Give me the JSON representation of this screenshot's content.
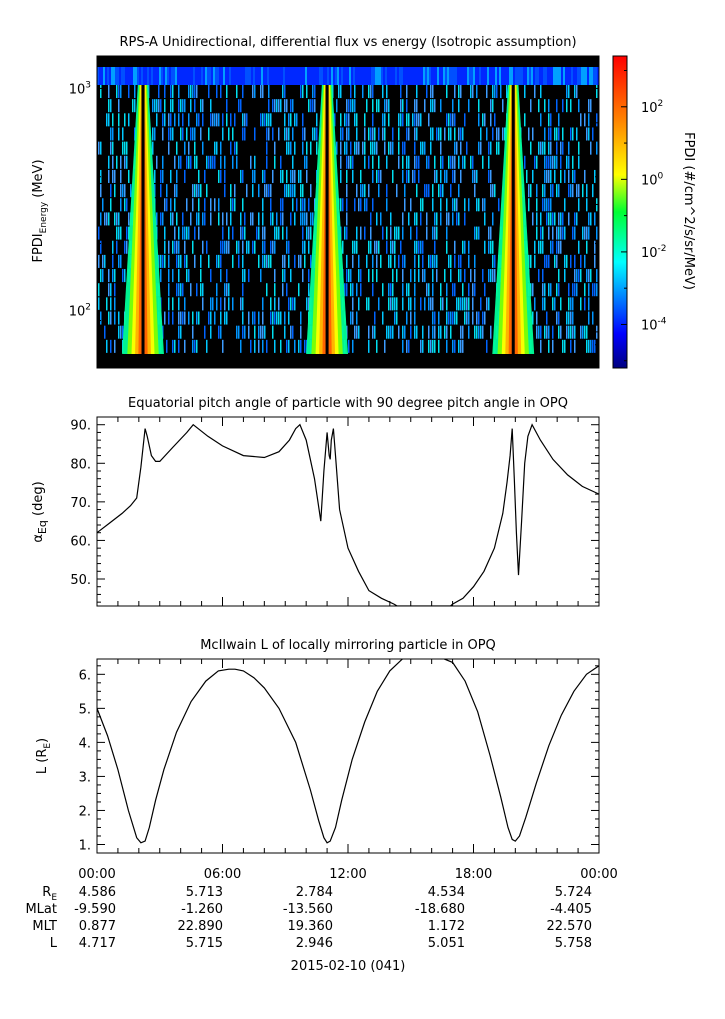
{
  "chart_data": [
    {
      "type": "heatmap",
      "title": "RPS-A Unidirectional, differential flux vs energy (Isotropic assumption)",
      "ylabel_main": "FPDI",
      "ylabel_sub": "Energy",
      "ylabel_unit": " (MeV)",
      "ylim": [
        55,
        1400
      ],
      "yscale": "log",
      "y_ticks": [
        {
          "value": 100,
          "base": "10",
          "exp": "2"
        },
        {
          "value": 1000,
          "base": "10",
          "exp": "3"
        }
      ],
      "time_range_hours": [
        0,
        24
      ],
      "bright_bands_hours": [
        {
          "center": 2.2,
          "channel_bottom_hours": [
            1.2,
            3.2
          ],
          "channel_top_hours": [
            2.0,
            2.5
          ]
        },
        {
          "center": 11.0,
          "channel_bottom_hours": [
            10.0,
            12.0
          ],
          "channel_top_hours": [
            10.8,
            11.3
          ]
        },
        {
          "center": 19.9,
          "channel_bottom_hours": [
            19.0,
            21.0
          ],
          "channel_top_hours": [
            19.7,
            20.2
          ]
        }
      ],
      "colorbar": {
        "label": "FPDI (#/cm^2/s/sr/MeV)",
        "min_exp": -5.2,
        "max_exp": 3.4,
        "ticks": [
          {
            "exp": "2",
            "base": "10"
          },
          {
            "exp": "0",
            "base": "10"
          },
          {
            "exp": "-2",
            "base": "10"
          },
          {
            "exp": "-4",
            "base": "10"
          }
        ]
      }
    },
    {
      "type": "line",
      "title": "Equatorial pitch angle of particle with 90 degree pitch angle in OPQ",
      "ylabel_main": "α",
      "ylabel_sub": "Eq",
      "ylabel_unit": " (deg)",
      "ylim": [
        43,
        92
      ],
      "yticks": [
        50,
        60,
        70,
        80,
        90
      ],
      "ytick_labels": [
        "50.",
        "60.",
        "70.",
        "80.",
        "90."
      ],
      "x_hours": [
        0,
        0.6,
        1.2,
        1.6,
        1.9,
        2.1,
        2.3,
        2.4,
        2.6,
        2.8,
        3.0,
        3.6,
        4.3,
        4.6,
        5.3,
        6.0,
        7.0,
        8.0,
        8.7,
        9.2,
        9.5,
        9.7,
        10.0,
        10.4,
        10.7,
        10.85,
        11.0,
        11.1,
        11.15,
        11.2,
        11.3,
        11.4,
        11.6,
        12.0,
        12.5,
        13.0,
        13.6,
        14.2,
        14.35,
        16.9,
        17.0,
        17.5,
        18.0,
        18.5,
        19.0,
        19.4,
        19.6,
        19.75,
        19.85,
        19.95,
        20.05,
        20.15,
        20.3,
        20.45,
        20.6,
        20.8,
        21.2,
        21.8,
        22.5,
        23.2,
        24.0
      ],
      "y_deg": [
        62,
        64.5,
        67,
        69,
        71,
        79,
        89,
        87,
        82,
        80.5,
        80.5,
        84,
        88,
        90,
        87,
        84.5,
        82,
        81.5,
        83,
        86,
        89,
        90,
        86,
        76,
        65,
        78,
        88,
        82,
        81,
        86,
        89,
        82,
        68,
        58,
        52,
        47,
        45,
        43.5,
        43,
        43,
        43.5,
        45,
        48,
        52,
        58,
        67,
        75,
        82,
        89,
        76,
        62,
        51,
        65,
        80,
        87,
        90,
        86,
        81,
        77,
        74,
        72
      ]
    },
    {
      "type": "line",
      "title": "McIlwain L of locally mirroring particle in OPQ",
      "ylabel_main": "L (R",
      "ylabel_sub": "E",
      "ylabel_unit": ")",
      "ylim": [
        0.75,
        6.45
      ],
      "yticks": [
        1,
        2,
        3,
        4,
        5,
        6
      ],
      "ytick_labels": [
        "1.",
        "2.",
        "3.",
        "4.",
        "5.",
        "6."
      ],
      "x_hours": [
        0,
        0.5,
        1.0,
        1.5,
        1.9,
        2.1,
        2.3,
        2.5,
        2.8,
        3.2,
        3.8,
        4.5,
        5.2,
        5.8,
        6.3,
        6.6,
        7.0,
        7.5,
        8.0,
        8.7,
        9.5,
        10.2,
        10.6,
        10.85,
        11.0,
        11.15,
        11.4,
        11.7,
        12.2,
        12.8,
        13.4,
        14.0,
        14.6,
        15.2,
        15.8,
        16.4,
        17.0,
        17.6,
        18.2,
        18.8,
        19.3,
        19.65,
        19.85,
        20.0,
        20.2,
        20.5,
        21.0,
        21.6,
        22.2,
        22.8,
        23.4,
        24.0
      ],
      "y_re": [
        5.0,
        4.2,
        3.2,
        2.0,
        1.2,
        1.05,
        1.1,
        1.5,
        2.3,
        3.2,
        4.3,
        5.2,
        5.8,
        6.1,
        6.15,
        6.15,
        6.1,
        5.9,
        5.6,
        5.0,
        4.0,
        2.6,
        1.7,
        1.2,
        1.05,
        1.1,
        1.5,
        2.3,
        3.5,
        4.6,
        5.5,
        6.1,
        6.45,
        6.5,
        6.5,
        6.5,
        6.35,
        5.8,
        4.9,
        3.6,
        2.4,
        1.5,
        1.15,
        1.1,
        1.25,
        1.8,
        2.8,
        3.9,
        4.8,
        5.5,
        6.0,
        6.25
      ]
    }
  ],
  "xaxis": {
    "tick_labels": [
      "00:00",
      "06:00",
      "12:00",
      "18:00",
      "00:00"
    ],
    "row_labels": [
      {
        "main": "R",
        "sub": "E"
      },
      {
        "main": "MLat",
        "sub": ""
      },
      {
        "main": "MLT",
        "sub": ""
      },
      {
        "main": "L",
        "sub": ""
      }
    ],
    "rows": [
      [
        "4.586",
        "5.713",
        "2.784",
        "4.534",
        "5.724"
      ],
      [
        "-9.590",
        "-1.260",
        "-13.560",
        "-18.680",
        "-4.405"
      ],
      [
        "0.877",
        "22.890",
        "19.360",
        "1.172",
        "22.570"
      ],
      [
        "4.717",
        "5.715",
        "2.946",
        "5.051",
        "5.758"
      ]
    ],
    "date_label": "2015-02-10 (041)"
  },
  "colors": {
    "line": "#000000",
    "background": "#000000"
  }
}
